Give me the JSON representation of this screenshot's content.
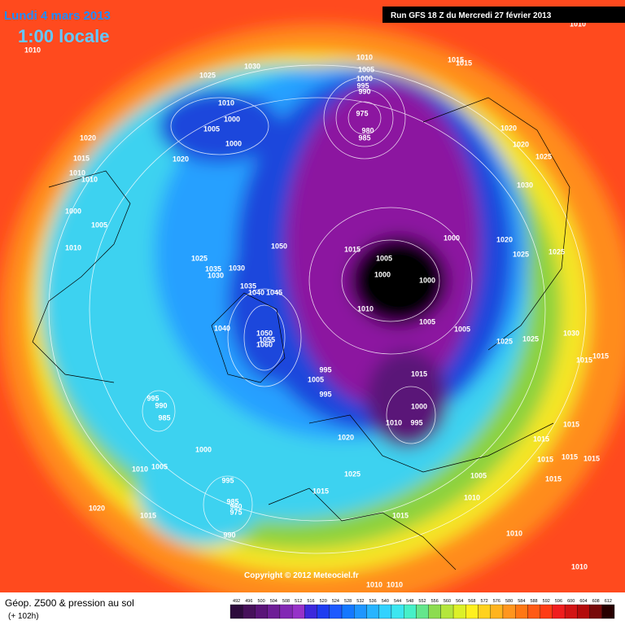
{
  "header": {
    "date": "Lundi 4 mars 2013",
    "time": "1:00 locale",
    "run": "Run GFS 18 Z du Mercredi 27 février 2013"
  },
  "footer": {
    "title": "Géop. Z500 & pression au sol",
    "lead": "(+ 102h)",
    "copyright": "Copyright © 2012 Meteociel.fr"
  },
  "colorbar": {
    "ticks": [
      492,
      496,
      500,
      504,
      508,
      512,
      516,
      520,
      524,
      528,
      532,
      536,
      540,
      544,
      548,
      552,
      556,
      560,
      564,
      568,
      572,
      576,
      580,
      584,
      588,
      592,
      596,
      600,
      604,
      608,
      612
    ],
    "colors": [
      "#2d0a3c",
      "#46105a",
      "#5a1478",
      "#6e1e96",
      "#8228b4",
      "#9632c8",
      "#3c28dc",
      "#1e3cf0",
      "#1e5aff",
      "#1478ff",
      "#1e96ff",
      "#28b4ff",
      "#32d2ff",
      "#3ce6f0",
      "#46f0c8",
      "#64e68c",
      "#8cdc50",
      "#b4e63c",
      "#dcf028",
      "#fff01e",
      "#ffd21e",
      "#ffb41e",
      "#ff961e",
      "#ff7814",
      "#ff5a14",
      "#ff3c14",
      "#f01e1e",
      "#d21414",
      "#b40a0a",
      "#780a0a",
      "#280000"
    ]
  },
  "map": {
    "pressure_labels": [
      1010,
      1025,
      1030,
      1010,
      1005,
      1000,
      995,
      990,
      1015,
      1015,
      1010,
      1010,
      1000,
      1005,
      1000,
      975,
      980,
      985,
      1020,
      1015,
      1020,
      1010,
      1010,
      1020,
      1020,
      1025,
      1030,
      1000,
      1005,
      1010,
      1000,
      1020,
      1025,
      1025,
      1050,
      1015,
      1025,
      1035,
      1030,
      1030,
      1035,
      1040,
      1045,
      1005,
      1000,
      1000,
      1010,
      1005,
      1005,
      1040,
      1050,
      1055,
      1060,
      1025,
      1025,
      1030,
      1015,
      1015,
      995,
      1005,
      995,
      1015,
      995,
      990,
      985,
      1000,
      1010,
      995,
      1020,
      1015,
      1015,
      1000,
      1010,
      1005,
      1015,
      1015,
      1015,
      1025,
      1005,
      1015,
      995,
      1015,
      1010,
      985,
      980,
      975,
      1020,
      1015,
      1015,
      990,
      1010,
      1010,
      1010,
      1010
    ]
  }
}
